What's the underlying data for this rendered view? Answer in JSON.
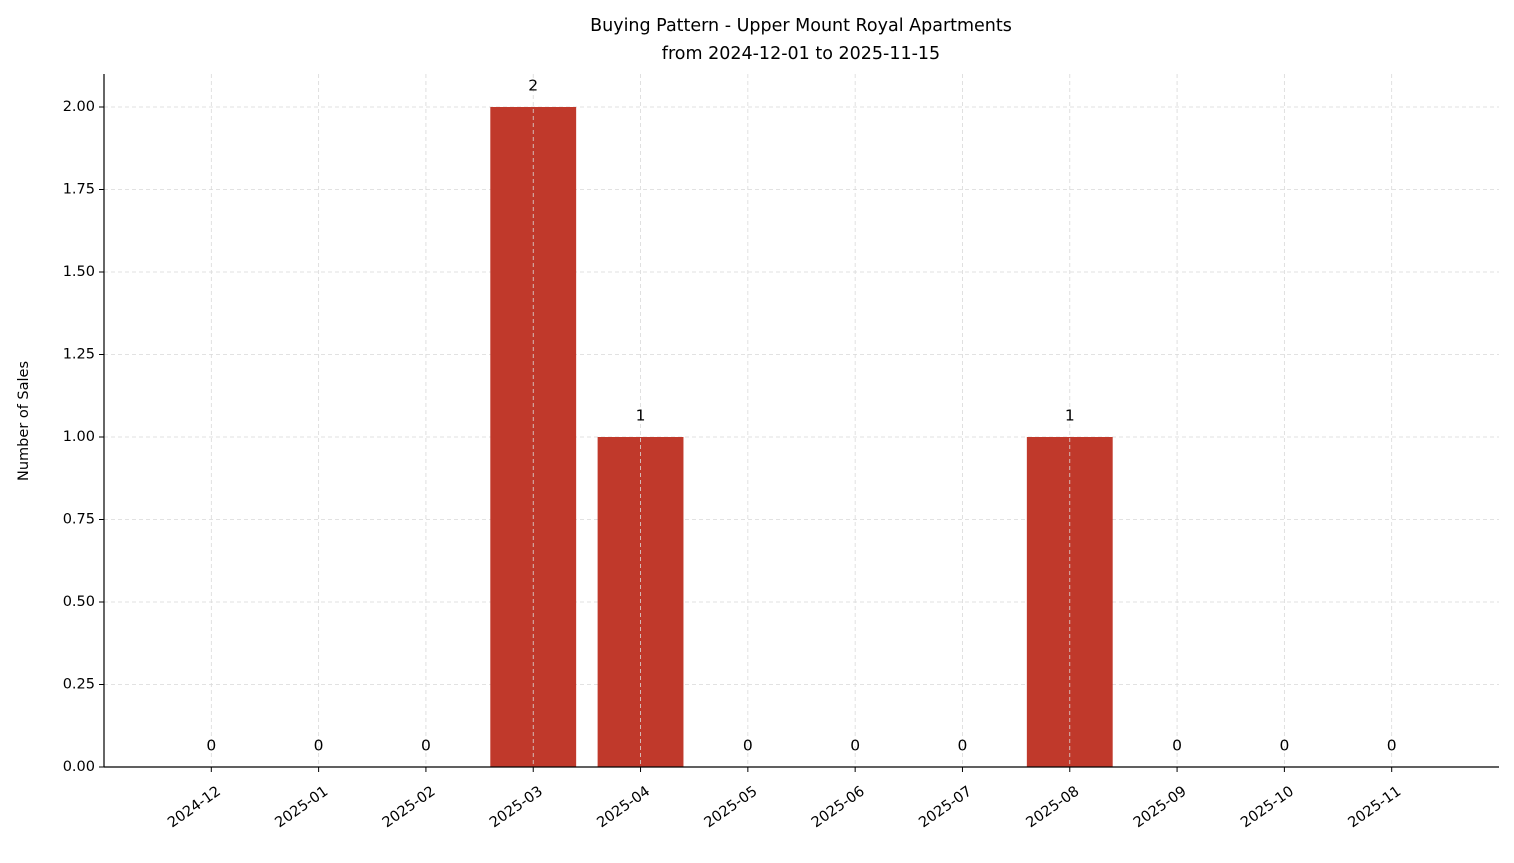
{
  "chart_data": {
    "type": "bar",
    "title": "Buying Pattern - Upper Mount Royal Apartments",
    "subtitle": "from 2024-12-01 to 2025-11-15",
    "y_label": "Number of Sales",
    "categories": [
      "2024-12",
      "2025-01",
      "2025-02",
      "2025-03",
      "2025-04",
      "2025-05",
      "2025-06",
      "2025-07",
      "2025-08",
      "2025-09",
      "2025-10",
      "2025-11"
    ],
    "values": [
      0,
      0,
      0,
      2,
      1,
      0,
      0,
      0,
      1,
      0,
      0,
      0
    ],
    "color": "#c0392b",
    "ylim": [
      0,
      2.1
    ],
    "yticks": [
      {
        "value": 0,
        "label": "0.00"
      },
      0.25,
      {
        "value": 0.5,
        "label": "0.50"
      },
      0.75,
      {
        "value": 1,
        "label": "1.00"
      },
      1.25,
      {
        "value": 1.5,
        "label": "1.50"
      },
      1.75,
      {
        "value": 2,
        "label": "2.00"
      }
    ],
    "grid": true
  }
}
